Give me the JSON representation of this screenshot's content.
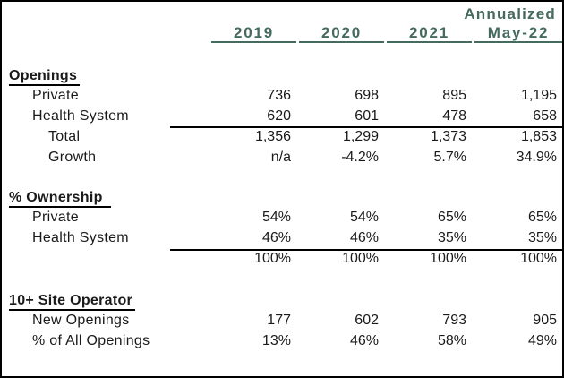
{
  "colors": {
    "accent_green": "#456a5e",
    "text_black": "#1a1a1a",
    "border_black": "#000000"
  },
  "table": {
    "header": {
      "annualized_label": "Annualized",
      "columns": [
        "2019",
        "2020",
        "2021",
        "May-22"
      ]
    },
    "sections": [
      {
        "title": "Openings",
        "rows": [
          {
            "label": "Private",
            "values": [
              "736",
              "698",
              "895",
              "1,195"
            ]
          },
          {
            "label": "Health System",
            "values": [
              "620",
              "601",
              "478",
              "658"
            ]
          },
          {
            "label": "Total",
            "values": [
              "1,356",
              "1,299",
              "1,373",
              "1,853"
            ]
          },
          {
            "label": "Growth",
            "values": [
              "n/a",
              "-4.2%",
              "5.7%",
              "34.9%"
            ]
          }
        ]
      },
      {
        "title": "% Ownership",
        "rows": [
          {
            "label": "Private",
            "values": [
              "54%",
              "54%",
              "65%",
              "65%"
            ]
          },
          {
            "label": "Health System",
            "values": [
              "46%",
              "46%",
              "35%",
              "35%"
            ]
          },
          {
            "label": "",
            "values": [
              "100%",
              "100%",
              "100%",
              "100%"
            ]
          }
        ]
      },
      {
        "title": "10+ Site Operator",
        "rows": [
          {
            "label": "New Openings",
            "values": [
              "177",
              "602",
              "793",
              "905"
            ]
          },
          {
            "label": "% of All Openings",
            "values": [
              "13%",
              "46%",
              "58%",
              "49%"
            ]
          }
        ]
      }
    ]
  },
  "chart_data": {
    "type": "table",
    "title": "Openings / % Ownership / 10+ Site Operator by year",
    "categories": [
      "2019",
      "2020",
      "2021",
      "Annualized May-22"
    ],
    "series": [
      {
        "name": "Openings - Private",
        "values": [
          736,
          698,
          895,
          1195
        ]
      },
      {
        "name": "Openings - Health System",
        "values": [
          620,
          601,
          478,
          658
        ]
      },
      {
        "name": "Openings - Total",
        "values": [
          1356,
          1299,
          1373,
          1853
        ]
      },
      {
        "name": "Openings - Growth %",
        "values": [
          null,
          -4.2,
          5.7,
          34.9
        ]
      },
      {
        "name": "% Ownership - Private",
        "values": [
          54,
          54,
          65,
          65
        ]
      },
      {
        "name": "% Ownership - Health System",
        "values": [
          46,
          46,
          35,
          35
        ]
      },
      {
        "name": "% Ownership - Total",
        "values": [
          100,
          100,
          100,
          100
        ]
      },
      {
        "name": "10+ Site Operator - New Openings",
        "values": [
          177,
          602,
          793,
          905
        ]
      },
      {
        "name": "10+ Site Operator - % of All Openings",
        "values": [
          13,
          46,
          58,
          49
        ]
      }
    ]
  }
}
